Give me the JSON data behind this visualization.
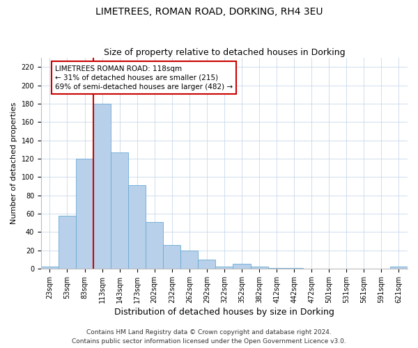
{
  "title": "LIMETREES, ROMAN ROAD, DORKING, RH4 3EU",
  "subtitle": "Size of property relative to detached houses in Dorking",
  "xlabel": "Distribution of detached houses by size in Dorking",
  "ylabel": "Number of detached properties",
  "bar_labels": [
    "23sqm",
    "53sqm",
    "83sqm",
    "113sqm",
    "143sqm",
    "173sqm",
    "202sqm",
    "232sqm",
    "262sqm",
    "292sqm",
    "322sqm",
    "352sqm",
    "382sqm",
    "412sqm",
    "442sqm",
    "472sqm",
    "501sqm",
    "531sqm",
    "561sqm",
    "591sqm",
    "621sqm"
  ],
  "bar_values": [
    2,
    58,
    120,
    180,
    127,
    91,
    51,
    26,
    20,
    10,
    2,
    5,
    2,
    1,
    1,
    0,
    0,
    0,
    0,
    0,
    2
  ],
  "bar_color": "#b8d0ea",
  "bar_edge_color": "#6aaad4",
  "vline_x_index": 3,
  "vline_color": "#cc0000",
  "annotation_text": "LIMETREES ROMAN ROAD: 118sqm\n← 31% of detached houses are smaller (215)\n69% of semi-detached houses are larger (482) →",
  "annotation_box_color": "#ffffff",
  "annotation_box_edge": "#cc0000",
  "ylim": [
    0,
    230
  ],
  "yticks": [
    0,
    20,
    40,
    60,
    80,
    100,
    120,
    140,
    160,
    180,
    200,
    220
  ],
  "grid_color": "#c8d8ea",
  "footnote1": "Contains HM Land Registry data © Crown copyright and database right 2024.",
  "footnote2": "Contains public sector information licensed under the Open Government Licence v3.0.",
  "title_fontsize": 10,
  "subtitle_fontsize": 9,
  "xlabel_fontsize": 9,
  "ylabel_fontsize": 8,
  "tick_fontsize": 7,
  "annotation_fontsize": 7.5,
  "footnote_fontsize": 6.5
}
